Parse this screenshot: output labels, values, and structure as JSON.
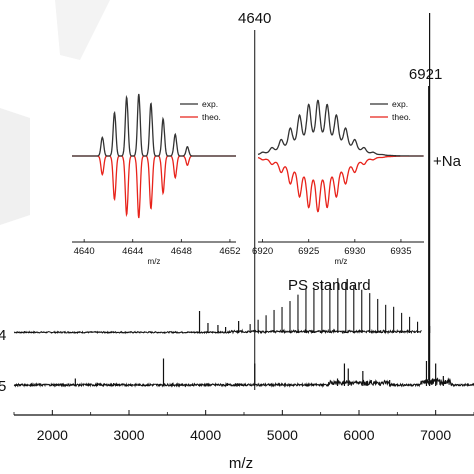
{
  "chart_data": [
    {
      "type": "line",
      "xlabel": "m/z",
      "xlim": [
        1500,
        7500
      ],
      "xticks": [
        2000,
        3000,
        4000,
        5000,
        6000,
        7000
      ],
      "grid": false,
      "annotations": [
        {
          "text": "4640",
          "x": 4640
        },
        {
          "text": "6921",
          "x": 6921
        },
        {
          "text": "+Na",
          "x": 6921
        },
        {
          "text": "PS standard",
          "x": 5400
        }
      ],
      "series_labels": [
        {
          "text": "4",
          "trace": "upper"
        },
        {
          "text": "5",
          "trace": "lower"
        }
      ],
      "series": [
        {
          "name": "upper",
          "baseline_x_start": 1500,
          "baseline_x_end": 6820,
          "comb_start": 4580,
          "comb_step": 104,
          "comb_end": 6820,
          "comb_center": 5700,
          "comb_peak_height": 0.58,
          "extra_peaks": [
            {
              "x": 3920,
              "h": 0.22
            },
            {
              "x": 4030,
              "h": 0.1
            },
            {
              "x": 4160,
              "h": 0.08
            },
            {
              "x": 4260,
              "h": 0.06
            },
            {
              "x": 4430,
              "h": 0.12
            },
            {
              "x": 6921,
              "h": 3.2
            }
          ]
        },
        {
          "name": "lower",
          "baseline_x_start": 1500,
          "baseline_x_end": 7500,
          "peaks": [
            {
              "x": 2300,
              "h": 0.15
            },
            {
              "x": 2800,
              "h": 0.06
            },
            {
              "x": 3450,
              "h": 0.55
            },
            {
              "x": 4640,
              "h": 0.45
            },
            {
              "x": 5720,
              "h": 0.15
            },
            {
              "x": 5810,
              "h": 0.45
            },
            {
              "x": 5860,
              "h": 0.35
            },
            {
              "x": 6050,
              "h": 0.3
            },
            {
              "x": 6400,
              "h": 0.12
            },
            {
              "x": 6880,
              "h": 0.5
            },
            {
              "x": 6921,
              "h": 1.2
            },
            {
              "x": 7000,
              "h": 0.45
            },
            {
              "x": 7100,
              "h": 0.2
            }
          ]
        }
      ]
    },
    {
      "type": "line",
      "name": "inset-4640",
      "xlabel": "m/z",
      "xlim": [
        4639,
        4652.5
      ],
      "xticks": [
        4640,
        4644,
        4648,
        4652
      ],
      "legend": {
        "placement": "top-right",
        "entries": [
          "exp.",
          "theo."
        ]
      },
      "isotope_peaks": [
        {
          "x": 4641.5,
          "h": 0.3
        },
        {
          "x": 4642.5,
          "h": 0.7
        },
        {
          "x": 4643.5,
          "h": 0.95
        },
        {
          "x": 4644.5,
          "h": 1.0
        },
        {
          "x": 4645.5,
          "h": 0.85
        },
        {
          "x": 4646.5,
          "h": 0.6
        },
        {
          "x": 4647.5,
          "h": 0.35
        },
        {
          "x": 4648.5,
          "h": 0.15
        }
      ],
      "series": [
        {
          "name": "exp.",
          "color": "#333333"
        },
        {
          "name": "theo.",
          "color": "#e8231b"
        }
      ]
    },
    {
      "type": "line",
      "name": "inset-6921",
      "xlabel": "m/z",
      "xlim": [
        6919.5,
        6937.5
      ],
      "xticks": [
        6920,
        6925,
        6930,
        6935
      ],
      "legend": {
        "placement": "top-right",
        "entries": [
          "exp.",
          "theo."
        ]
      },
      "isotope_envelope": {
        "center": 6926,
        "sigma": 2.4,
        "spacing": 1
      },
      "series": [
        {
          "name": "exp.",
          "color": "#333333"
        },
        {
          "name": "theo.",
          "color": "#e8231b"
        }
      ]
    }
  ]
}
